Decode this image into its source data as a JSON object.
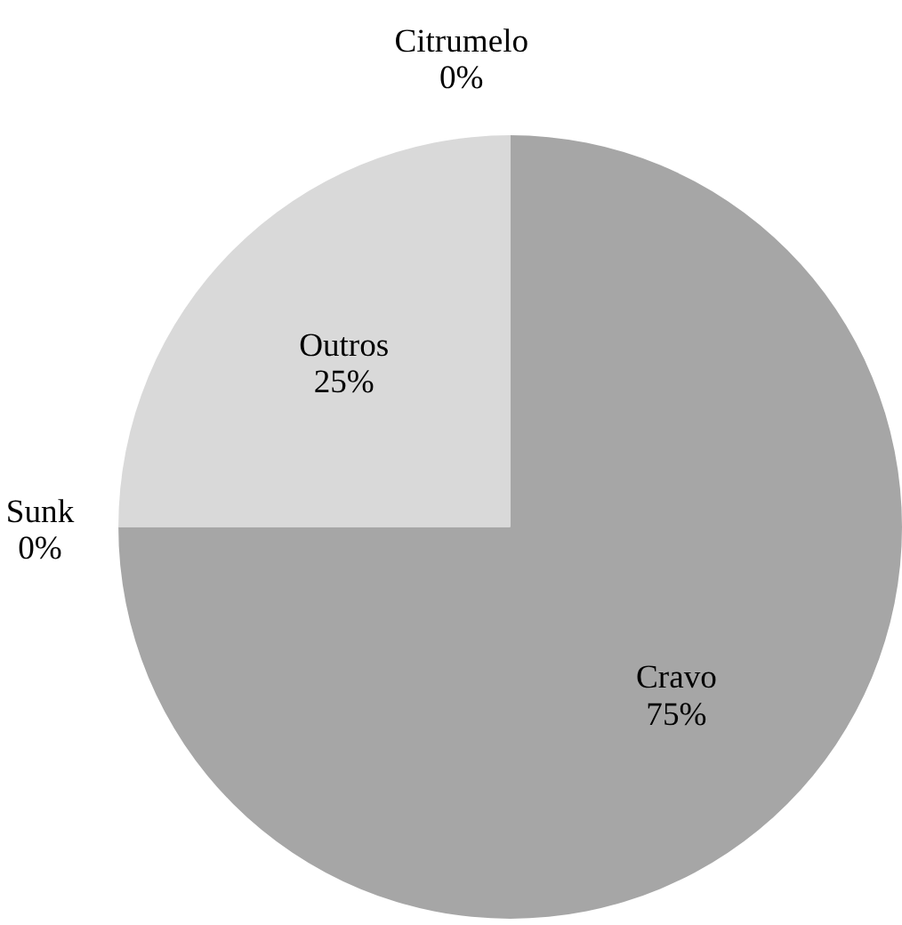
{
  "chart_data": {
    "type": "pie",
    "categories": [
      "Cravo",
      "Sunk",
      "Outros",
      "Citrumelo"
    ],
    "values": [
      75,
      0,
      25,
      0
    ],
    "colors": [
      "#a6a6a6",
      "#bfbfbf",
      "#d9d9d9",
      "#8c8c8c"
    ],
    "value_labels": [
      "75%",
      "0%",
      "25%",
      "0%"
    ],
    "legend": false
  }
}
